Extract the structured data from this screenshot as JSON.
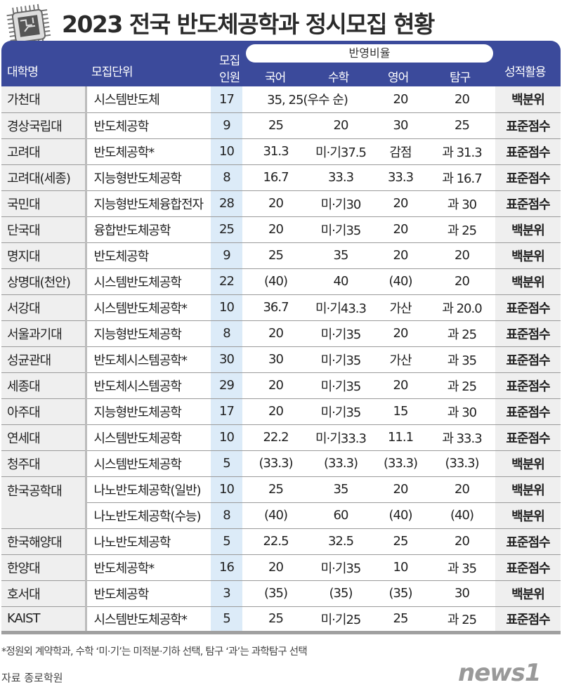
{
  "title": "2023 전국 반도체공학과 정시모집 현황",
  "header": {
    "university": "대학명",
    "unit": "모집단위",
    "count_top": "모집",
    "count_bottom": "인원",
    "ratio_group": "반영비율",
    "korean": "국어",
    "math": "수학",
    "english": "영어",
    "inquiry": "탐구",
    "score": "성적활용"
  },
  "rows": [
    [
      "가천대",
      "시스템반도체",
      "17",
      "35, 25(우수 순)",
      "",
      "20",
      "20",
      "백분위"
    ],
    [
      "경상국립대",
      "반도체공학",
      "9",
      "25",
      "20",
      "30",
      "25",
      "표준점수"
    ],
    [
      "고려대",
      "반도체공학*",
      "10",
      "31.3",
      "미·기37.5",
      "감점",
      "과 31.3",
      "표준점수"
    ],
    [
      "고려대(세종)",
      "지능형반도체공학",
      "8",
      "16.7",
      "33.3",
      "33.3",
      "과 16.7",
      "표준점수"
    ],
    [
      "국민대",
      "지능형반도체융합전자",
      "28",
      "20",
      "미·기30",
      "20",
      "과 30",
      "표준점수"
    ],
    [
      "단국대",
      "융합반도체공학",
      "25",
      "20",
      "미·기35",
      "20",
      "과 25",
      "백분위"
    ],
    [
      "명지대",
      "반도체공학",
      "9",
      "25",
      "35",
      "20",
      "20",
      "백분위"
    ],
    [
      "상명대(천안)",
      "시스템반도체공학",
      "22",
      "(40)",
      "40",
      "(40)",
      "20",
      "백분위"
    ],
    [
      "서강대",
      "시스템반도체공학*",
      "10",
      "36.7",
      "미·기43.3",
      "가산",
      "과 20.0",
      "표준점수"
    ],
    [
      "서울과기대",
      "지능형반도체공학",
      "8",
      "20",
      "미·기35",
      "20",
      "과 25",
      "표준점수"
    ],
    [
      "성균관대",
      "반도체시스템공학*",
      "30",
      "30",
      "미·기35",
      "가산",
      "과 35",
      "표준점수"
    ],
    [
      "세종대",
      "반도체시스템공학",
      "29",
      "20",
      "미·기35",
      "20",
      "과 25",
      "표준점수"
    ],
    [
      "아주대",
      "지능형반도체공학",
      "17",
      "20",
      "미·기35",
      "15",
      "과 30",
      "표준점수"
    ],
    [
      "연세대",
      "시스템반도체공학",
      "10",
      "22.2",
      "미·기33.3",
      "11.1",
      "과 33.3",
      "표준점수"
    ],
    [
      "청주대",
      "시스템반도체공학",
      "5",
      "(33.3)",
      "(33.3)",
      "(33.3)",
      "(33.3)",
      "백분위"
    ],
    [
      "한국공학대",
      "나노반도체공학(일반)",
      "10",
      "25",
      "35",
      "20",
      "20",
      "백분위"
    ],
    [
      "",
      "나노반도체공학(수능)",
      "8",
      "(40)",
      "60",
      "(40)",
      "(40)",
      "백분위"
    ],
    [
      "한국해양대",
      "나노반도체공학",
      "5",
      "22.5",
      "32.5",
      "25",
      "20",
      "표준점수"
    ],
    [
      "한양대",
      "반도체공학*",
      "16",
      "20",
      "미·기35",
      "10",
      "과 35",
      "표준점수"
    ],
    [
      "호서대",
      "반도체공학",
      "3",
      "(35)",
      "(35)",
      "(35)",
      "30",
      "백분위"
    ],
    [
      "KAIST",
      "시스템반도체공학*",
      "5",
      "25",
      "미·기25",
      "25",
      "과 25",
      "표준점수"
    ]
  ],
  "footnote": "*정원외 계약학과, 수학 ‘미·기’는 미적분·기하 선택, 탐구 ‘과’는 과학탐구 선택",
  "source": "자료 종로학원",
  "logo": "news1",
  "colors": {
    "header": "#3b4a9b",
    "count_column": "#dcebf8",
    "side_columns": "#efefef"
  }
}
